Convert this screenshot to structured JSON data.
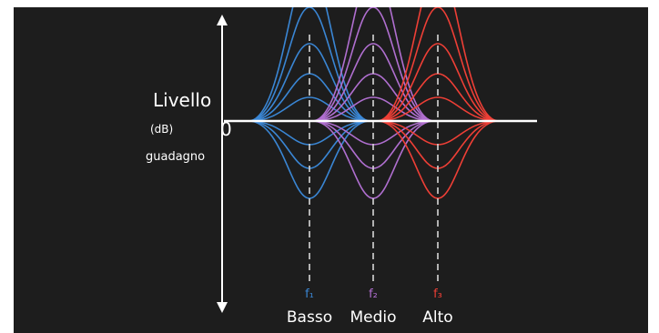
{
  "level_axis": {
    "title": "Livello",
    "unit": "(dB)",
    "zero": "0",
    "caption": "guadagno"
  },
  "bands": [
    {
      "name": "Basso",
      "freq_label": "f₁",
      "color": "#3a86d4"
    },
    {
      "name": "Medio",
      "freq_label": "f₂",
      "color": "#b06fd0"
    },
    {
      "name": "Alto",
      "freq_label": "f₃",
      "color": "#ee3f36"
    }
  ],
  "colors": {
    "background": "#1d1d1d",
    "axis": "#ffffff"
  }
}
